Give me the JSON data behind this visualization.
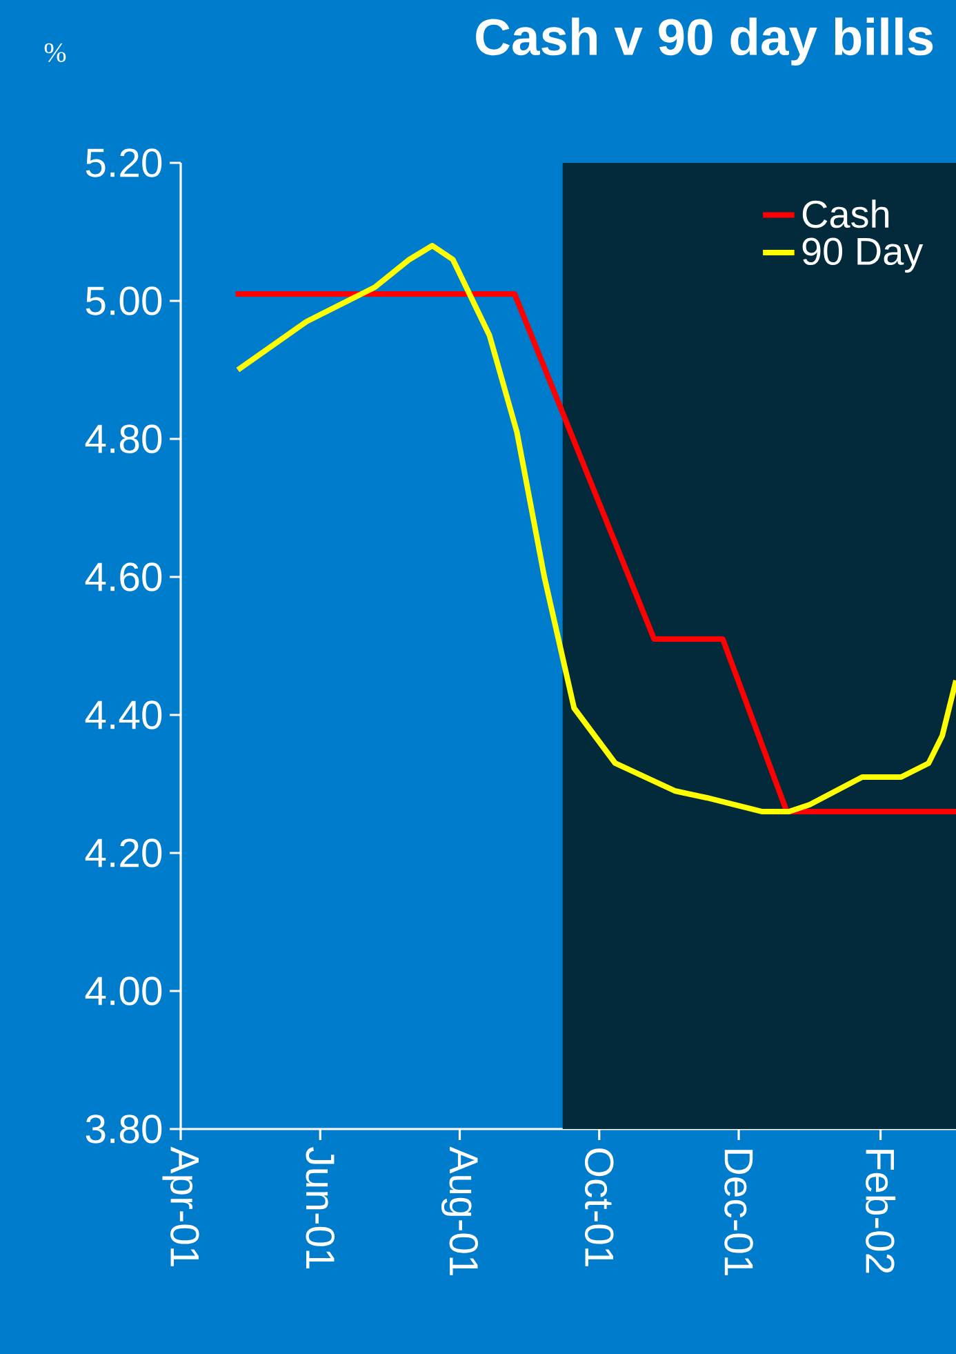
{
  "chart_data": {
    "type": "line",
    "title": "Cash v 90 day bills",
    "ylabel": "%",
    "xlim": [
      "2001-04-01",
      "2002-03-06"
    ],
    "ylim": [
      3.8,
      5.2
    ],
    "xticks": [
      {
        "value": "2001-04-01",
        "label": "Apr-01"
      },
      {
        "value": "2001-06-01",
        "label": "Jun-01"
      },
      {
        "value": "2001-08-01",
        "label": "Aug-01"
      },
      {
        "value": "2001-10-01",
        "label": "Oct-01"
      },
      {
        "value": "2001-12-01",
        "label": "Dec-01"
      },
      {
        "value": "2002-02-01",
        "label": "Feb-02"
      }
    ],
    "yticks": [
      {
        "value": 3.8,
        "label": "3.80"
      },
      {
        "value": 4.0,
        "label": "4.00"
      },
      {
        "value": 4.2,
        "label": "4.20"
      },
      {
        "value": 4.4,
        "label": "4.40"
      },
      {
        "value": 4.6,
        "label": "4.60"
      },
      {
        "value": 4.8,
        "label": "4.80"
      },
      {
        "value": 5.0,
        "label": "5.00"
      },
      {
        "value": 5.2,
        "label": "5.20"
      }
    ],
    "legend": "top right",
    "bands": [
      {
        "axis": "x",
        "from": "2001-09-15",
        "to": "2002-03-06",
        "color": "#032a3a"
      }
    ],
    "series": [
      {
        "name": "Cash",
        "color": "#ff0000",
        "x": [
          "2001-04-25",
          "2001-08-25",
          "2001-10-25",
          "2001-11-24",
          "2001-12-22",
          "2002-03-06"
        ],
        "values": [
          5.01,
          5.01,
          4.51,
          4.51,
          4.26,
          4.26
        ]
      },
      {
        "name": "90 Day",
        "color": "#ffff00",
        "x": [
          "2001-04-26",
          "2001-05-26",
          "2001-06-25",
          "2001-07-10",
          "2001-07-20",
          "2001-07-29",
          "2001-08-14",
          "2001-08-26",
          "2001-09-07",
          "2001-09-20",
          "2001-10-08",
          "2001-11-03",
          "2001-11-17",
          "2001-12-11",
          "2001-12-23",
          "2002-01-01",
          "2002-01-24",
          "2002-02-10",
          "2002-02-22",
          "2002-02-28",
          "2002-03-06"
        ],
        "values": [
          4.9,
          4.97,
          5.02,
          5.06,
          5.08,
          5.06,
          4.95,
          4.81,
          4.6,
          4.41,
          4.33,
          4.29,
          4.28,
          4.26,
          4.26,
          4.27,
          4.31,
          4.31,
          4.33,
          4.37,
          4.45
        ]
      }
    ]
  }
}
